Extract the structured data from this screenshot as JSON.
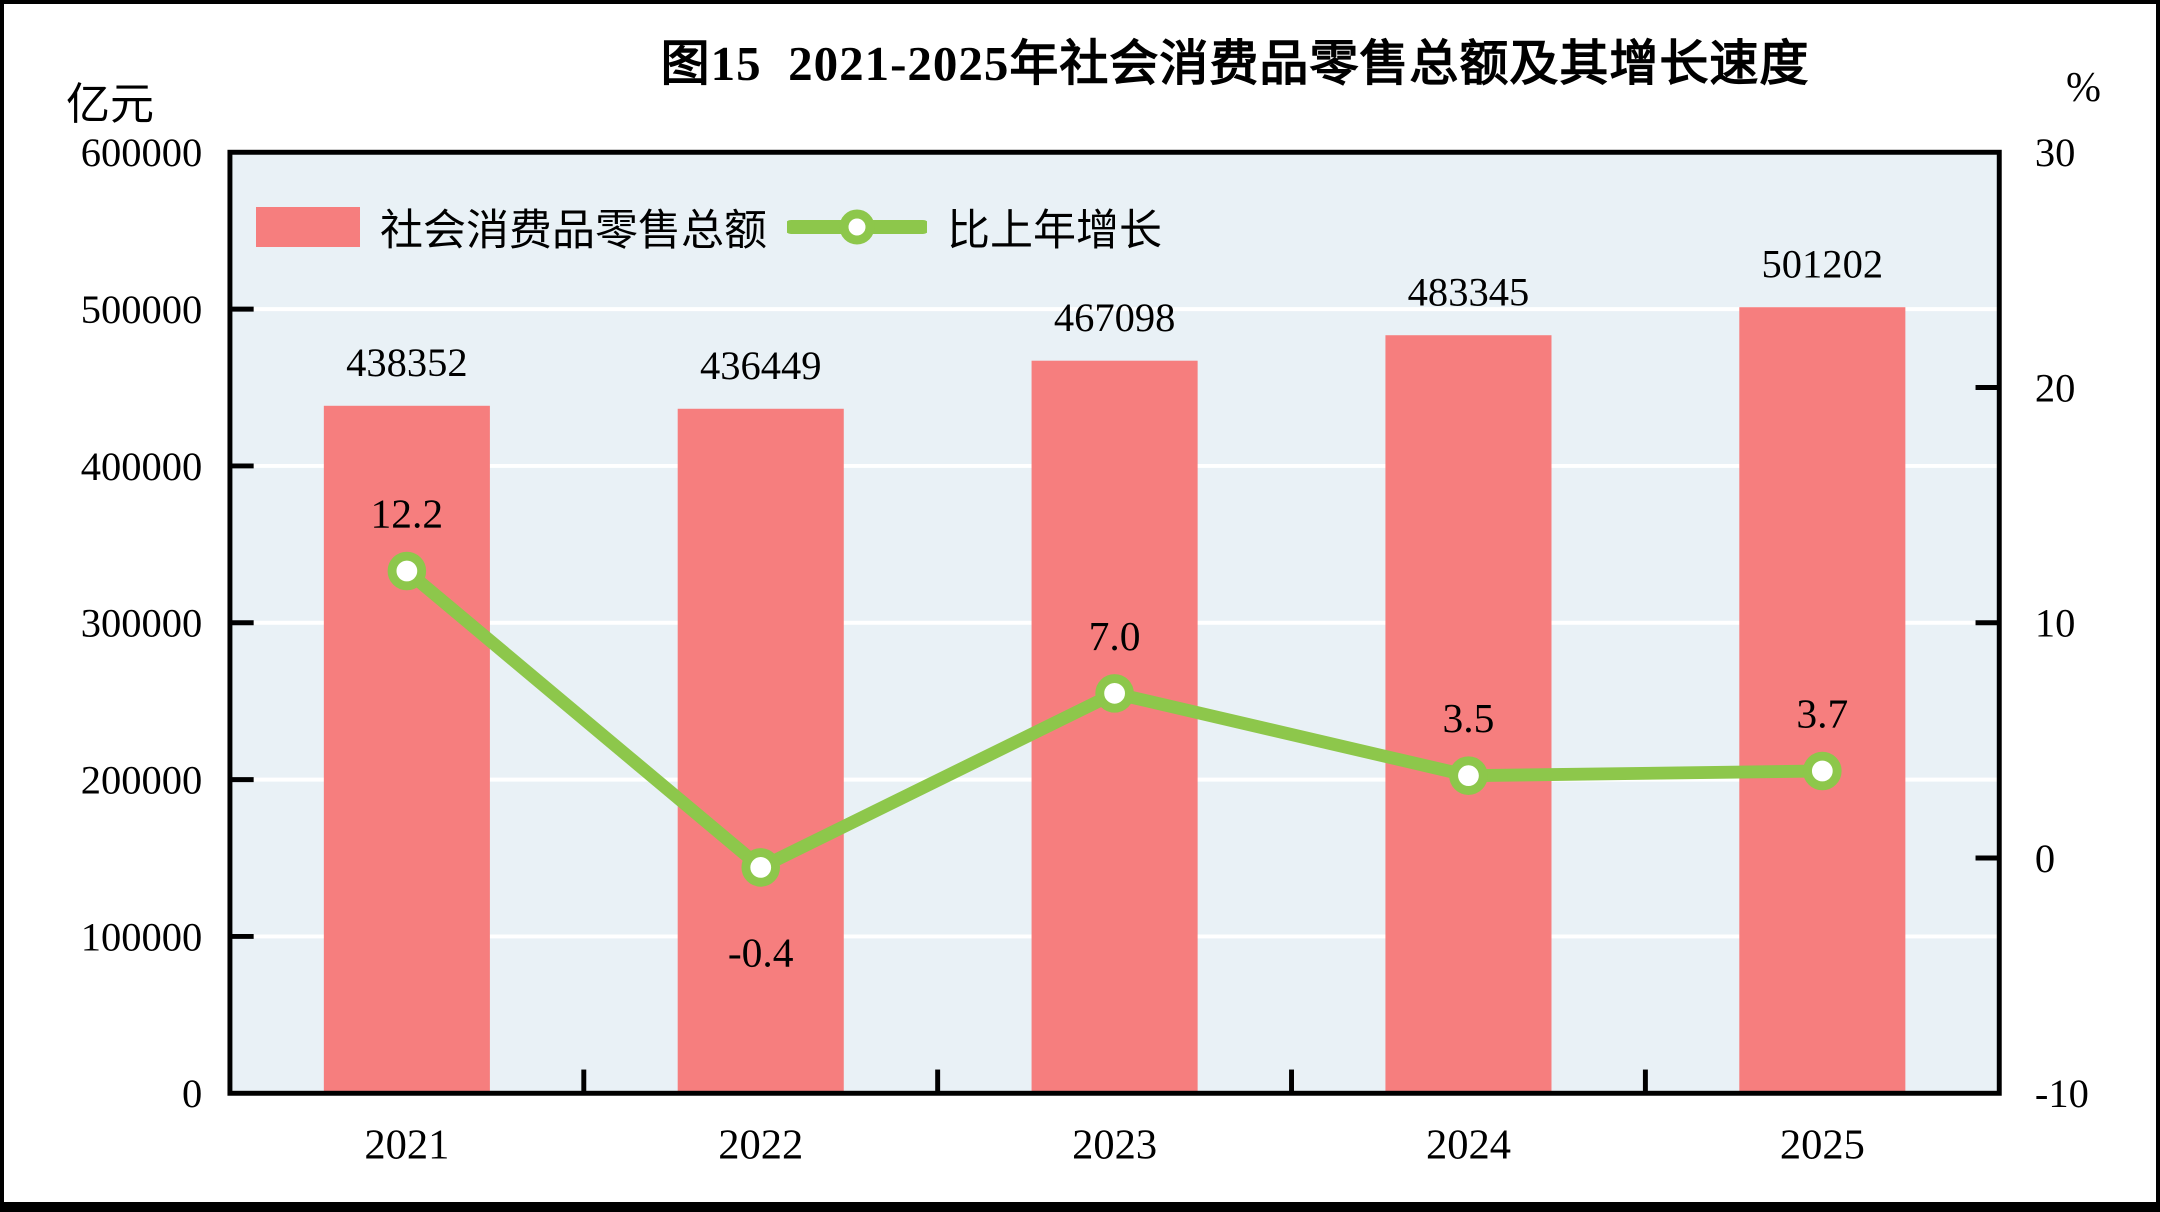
{
  "figure": {
    "title": "图15  2021-2025年社会消费品零售总额及其增长速度",
    "left_axis_unit": "亿元",
    "right_axis_unit": "%"
  },
  "legend": {
    "bar_label": "社会消费品零售总额",
    "line_label": "比上年增长"
  },
  "colors": {
    "bar": "#F67E7E",
    "line": "#8DC74B",
    "marker_fill": "#FFFFFF",
    "plot_background": "#E9F1F6",
    "gridline": "#FFFFFF",
    "border": "#000000",
    "text": "#000000"
  },
  "chart_data": {
    "type": "bar",
    "title": "图15  2021-2025年社会消费品零售总额及其增长速度",
    "categories": [
      "2021",
      "2022",
      "2023",
      "2024",
      "2025"
    ],
    "series": [
      {
        "name": "社会消费品零售总额",
        "type": "bar",
        "axis": "left",
        "unit": "亿元",
        "values": [
          438352,
          436449,
          467098,
          483345,
          501202
        ],
        "labels": [
          "438352",
          "436449",
          "467098",
          "483345",
          "501202"
        ]
      },
      {
        "name": "比上年增长",
        "type": "line",
        "axis": "right",
        "unit": "%",
        "values": [
          12.2,
          -0.4,
          7.0,
          3.5,
          3.7
        ],
        "labels": [
          "12.2",
          "-0.4",
          "7.0",
          "3.5",
          "3.7"
        ]
      }
    ],
    "left_axis": {
      "label": "亿元",
      "min": 0,
      "max": 600000,
      "step": 100000,
      "ticks": [
        "0",
        "100000",
        "200000",
        "300000",
        "400000",
        "500000",
        "600000"
      ]
    },
    "right_axis": {
      "label": "%",
      "min": -10,
      "max": 30,
      "step": 10,
      "ticks": [
        "-10",
        "0",
        "10",
        "20",
        "30"
      ]
    },
    "xlabel": "",
    "ylabel": "亿元",
    "grid": true,
    "legend_position": "top-left-inside"
  }
}
